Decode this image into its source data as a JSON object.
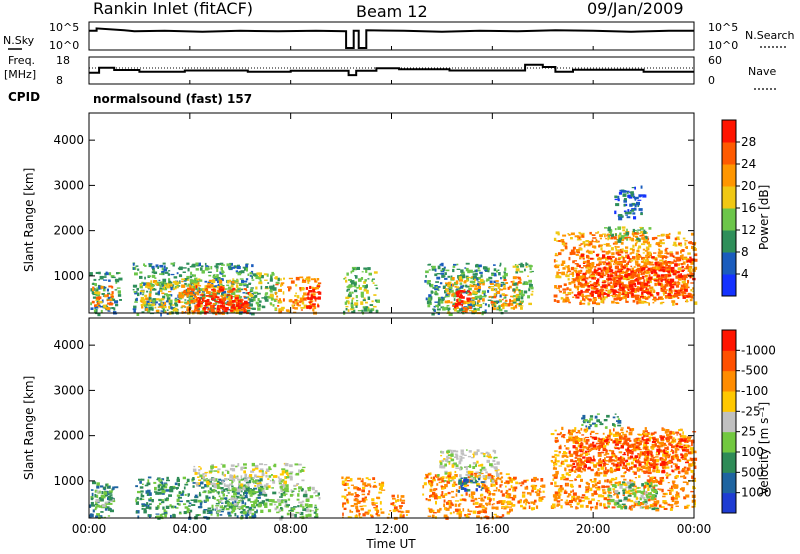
{
  "header": {
    "station": "Rankin Inlet (fitACF)",
    "beam": "Beam 12",
    "date": "09/Jan/2009"
  },
  "strip_labels": {
    "nsky": "N.Sky",
    "nsky_hi": "10^5",
    "nsky_lo": "10^0",
    "nsearch": "N.Search",
    "nsearch_hi": "10^5",
    "nsearch_lo": "10^0",
    "freq_line1": "Freq.",
    "freq_line2": "[MHz]",
    "freq_hi": "18",
    "freq_lo": "8",
    "nave": "Nave",
    "nave_hi": "60",
    "nave_lo": "0",
    "cpid": "CPID",
    "cpid_value": "normalsound (fast) 157"
  },
  "axes": {
    "xlabel": "Time UT",
    "ylabel": "Slant Range [km]",
    "xticks": [
      "00:00",
      "04:00",
      "08:00",
      "12:00",
      "16:00",
      "20:00",
      "00:00"
    ],
    "yticks": [
      "1000",
      "2000",
      "3000",
      "4000"
    ]
  },
  "colorbars": {
    "power": {
      "label": "Power [dB]",
      "ticks": [
        "4",
        "8",
        "12",
        "16",
        "20",
        "24",
        "28"
      ],
      "colors": [
        "#1432ff",
        "#1a5cbd",
        "#2f8f5a",
        "#6cc64a",
        "#f0c814",
        "#ff9600",
        "#ff5a00",
        "#ff1400"
      ]
    },
    "velocity": {
      "label": "Velocity [m s⁻¹]",
      "ticks": [
        "1000",
        "500",
        "100",
        "25",
        "-25",
        "-100",
        "-500",
        "-1000"
      ],
      "colors": [
        "#1e3cd2",
        "#1e64a0",
        "#2e8b57",
        "#72c840",
        "#c0c0c0",
        "#ffc800",
        "#ff8c00",
        "#ff5000",
        "#ff1400"
      ]
    }
  },
  "chart_data": [
    {
      "type": "line",
      "title": "N.Sky / N.Search",
      "x_unit": "UT hours",
      "xlim": [
        0,
        24
      ],
      "ylim_log10": [
        0,
        5
      ],
      "series": [
        {
          "name": "N.Sky",
          "x": [
            0,
            0.3,
            0.3,
            1.4,
            1.8,
            3.0,
            4.5,
            6.0,
            7.5,
            9.0,
            10.2,
            10.2,
            10.5,
            10.5,
            10.7,
            10.7,
            11.0,
            11.0,
            12.5,
            14.0,
            15.5,
            17.0,
            18.5,
            20.0,
            21.5,
            23.0,
            24
          ],
          "y": [
            3.8,
            3.8,
            4.3,
            3.9,
            3.7,
            3.8,
            3.6,
            3.8,
            3.7,
            3.8,
            3.7,
            0.2,
            0.2,
            3.8,
            3.8,
            0.2,
            0.2,
            3.9,
            3.8,
            3.6,
            3.8,
            3.7,
            3.9,
            3.8,
            3.6,
            3.8,
            3.8
          ]
        }
      ]
    },
    {
      "type": "line",
      "title": "Freq. / Nave",
      "x_unit": "UT hours",
      "xlim": [
        0,
        24
      ],
      "ylim_left": [
        8,
        18
      ],
      "series": [
        {
          "name": "Freq.",
          "x": [
            0,
            0.4,
            0.4,
            1.0,
            1.0,
            2.0,
            2.0,
            3.8,
            3.8,
            6.3,
            6.3,
            8.0,
            8.0,
            10.3,
            10.3,
            10.6,
            10.6,
            11.4,
            11.4,
            12.3,
            12.3,
            14.3,
            14.3,
            17.3,
            17.3,
            18.0,
            18.0,
            18.5,
            18.5,
            19.2,
            19.2,
            22.0,
            22.0,
            24
          ],
          "y": [
            12,
            12,
            14.2,
            14.2,
            13.2,
            13.2,
            12.5,
            12.5,
            13.0,
            13.0,
            12.5,
            12.5,
            12.9,
            12.9,
            11.0,
            11.0,
            12.9,
            12.9,
            14.0,
            14.0,
            13.5,
            13.5,
            13.0,
            13.0,
            15.5,
            15.5,
            14.5,
            14.5,
            12.5,
            12.5,
            13.3,
            13.3,
            12.5,
            12.5
          ]
        }
      ],
      "reference_line": {
        "name": "Nave",
        "style": "dotted"
      }
    },
    {
      "type": "heatmap",
      "title": "Power [dB]",
      "x_unit": "UT hours",
      "y_unit": "Slant Range [km]",
      "xlim": [
        0,
        24
      ],
      "ylim": [
        180,
        4600
      ],
      "clim": [
        0,
        32
      ],
      "regions": [
        {
          "x": [
            0,
            1.2
          ],
          "y": [
            180,
            1100
          ],
          "level": 2
        },
        {
          "x": [
            0.1,
            0.9
          ],
          "y": [
            300,
            800
          ],
          "level": 5
        },
        {
          "x": [
            1.7,
            6.5
          ],
          "y": [
            180,
            1300
          ],
          "level": 2
        },
        {
          "x": [
            2.0,
            6.0
          ],
          "y": [
            200,
            950
          ],
          "level": 4
        },
        {
          "x": [
            3.5,
            6.3
          ],
          "y": [
            200,
            800
          ],
          "level": 6
        },
        {
          "x": [
            4.2,
            6.2
          ],
          "y": [
            220,
            600
          ],
          "level": 7
        },
        {
          "x": [
            6.3,
            7.5
          ],
          "y": [
            300,
            1100
          ],
          "level": 3
        },
        {
          "x": [
            7.3,
            9.1
          ],
          "y": [
            200,
            1000
          ],
          "level": 5
        },
        {
          "x": [
            8.6,
            9.1
          ],
          "y": [
            300,
            800
          ],
          "level": 7
        },
        {
          "x": [
            10.0,
            11.4
          ],
          "y": [
            200,
            1200
          ],
          "level": 3
        },
        {
          "x": [
            13.3,
            16.5
          ],
          "y": [
            180,
            1300
          ],
          "level": 2
        },
        {
          "x": [
            14.1,
            15.6
          ],
          "y": [
            200,
            1000
          ],
          "level": 4
        },
        {
          "x": [
            14.3,
            15.1
          ],
          "y": [
            220,
            700
          ],
          "level": 7
        },
        {
          "x": [
            15.8,
            17.1
          ],
          "y": [
            300,
            1000
          ],
          "level": 5
        },
        {
          "x": [
            16.8,
            17.6
          ],
          "y": [
            400,
            1300
          ],
          "level": 3
        },
        {
          "x": [
            18.4,
            24
          ],
          "y": [
            400,
            2000
          ],
          "level": 5
        },
        {
          "x": [
            19.2,
            24
          ],
          "y": [
            500,
            1500
          ],
          "level": 6
        },
        {
          "x": [
            20.0,
            23.6
          ],
          "y": [
            600,
            1200
          ],
          "level": 7
        },
        {
          "x": [
            20.4,
            22.2
          ],
          "y": [
            1800,
            2100
          ],
          "level": 3
        },
        {
          "x": [
            20.8,
            22.0
          ],
          "y": [
            2300,
            3000
          ],
          "level": 1
        }
      ]
    },
    {
      "type": "heatmap",
      "title": "Velocity [m s⁻¹]",
      "x_unit": "UT hours",
      "y_unit": "Slant Range [km]",
      "xlim": [
        0,
        24
      ],
      "ylim": [
        180,
        4600
      ],
      "regions": [
        {
          "x": [
            0,
            1.0
          ],
          "y": [
            200,
            1000
          ],
          "level": 2
        },
        {
          "x": [
            0.2,
            0.9
          ],
          "y": [
            400,
            800
          ],
          "level": 3
        },
        {
          "x": [
            1.8,
            6.8
          ],
          "y": [
            200,
            1100
          ],
          "level": 2
        },
        {
          "x": [
            4.0,
            8.5
          ],
          "y": [
            900,
            1400
          ],
          "level": 4
        },
        {
          "x": [
            5.0,
            7.8
          ],
          "y": [
            300,
            900
          ],
          "level": 3
        },
        {
          "x": [
            7.5,
            9.1
          ],
          "y": [
            200,
            900
          ],
          "level": 3
        },
        {
          "x": [
            10.0,
            11.6
          ],
          "y": [
            200,
            1100
          ],
          "level": 6
        },
        {
          "x": [
            11.8,
            12.6
          ],
          "y": [
            200,
            700
          ],
          "level": 6
        },
        {
          "x": [
            13.2,
            16.7
          ],
          "y": [
            200,
            1200
          ],
          "level": 6
        },
        {
          "x": [
            13.8,
            16.2
          ],
          "y": [
            1000,
            1700
          ],
          "level": 4
        },
        {
          "x": [
            14.6,
            15.6
          ],
          "y": [
            800,
            1100
          ],
          "level": 1
        },
        {
          "x": [
            16.7,
            18.0
          ],
          "y": [
            400,
            1100
          ],
          "level": 6
        },
        {
          "x": [
            18.3,
            24
          ],
          "y": [
            400,
            2200
          ],
          "level": 6
        },
        {
          "x": [
            19.0,
            23.8
          ],
          "y": [
            1200,
            2000
          ],
          "level": 7
        },
        {
          "x": [
            20.5,
            22.5
          ],
          "y": [
            400,
            1000
          ],
          "level": 3
        },
        {
          "x": [
            19.5,
            21.0
          ],
          "y": [
            2200,
            2500
          ],
          "level": 2
        }
      ]
    }
  ]
}
